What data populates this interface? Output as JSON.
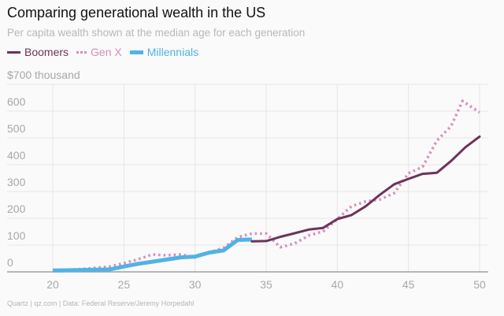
{
  "title": "Comparing generational wealth in the US",
  "subtitle": "Per capita wealth shown at the median age for each generation",
  "footer": "Quartz | qz.com | Data: Federal Reserve/Jeremy Horpedahl",
  "chart_data": {
    "type": "line",
    "title": "Comparing generational wealth in the US",
    "subtitle": "Per capita wealth shown at the median age for each generation",
    "ylabel_top": "$700 thousand",
    "xlim": [
      20,
      50
    ],
    "ylim": [
      0,
      700
    ],
    "x_ticks": [
      "20",
      "25",
      "30",
      "35",
      "40",
      "45",
      "50"
    ],
    "y_ticks": [
      "0",
      "100",
      "200",
      "300",
      "400",
      "500",
      "600",
      "$700 thousand"
    ],
    "y_tick_values": [
      0,
      100,
      200,
      300,
      400,
      500,
      600,
      700
    ],
    "x_tick_values": [
      20,
      25,
      30,
      35,
      40,
      45,
      50
    ],
    "grid": true,
    "legend_position": "top-left",
    "series": [
      {
        "name": "Boomers",
        "color": "#6d3359",
        "style": "solid",
        "x": [
          34,
          35,
          36,
          37,
          38,
          39,
          40,
          41,
          42,
          43,
          44,
          45,
          46,
          47,
          48,
          49,
          50
        ],
        "y": [
          114,
          115,
          131,
          144,
          158,
          164,
          197,
          212,
          245,
          288,
          327,
          347,
          366,
          370,
          414,
          465,
          505
        ]
      },
      {
        "name": "Gen X",
        "color": "#d68cbe",
        "style": "dotted",
        "x": [
          20,
          21,
          22,
          23,
          24,
          25,
          26,
          27,
          28,
          29,
          30,
          31,
          32,
          33,
          34,
          35,
          36,
          37,
          38,
          39,
          40,
          41,
          42,
          43,
          44,
          45,
          46,
          47,
          48,
          48.8,
          50
        ],
        "y": [
          7,
          8,
          10,
          15,
          20,
          32,
          47,
          65,
          62,
          65,
          54,
          72,
          89,
          129,
          143,
          143,
          92,
          106,
          136,
          151,
          197,
          245,
          263,
          270,
          294,
          368,
          392,
          490,
          544,
          638,
          595
        ]
      },
      {
        "name": "Millennials",
        "color": "#51b2e5",
        "style": "thick",
        "x": [
          20,
          21,
          22,
          23,
          24,
          25,
          26,
          27,
          28,
          29,
          30,
          31,
          32,
          33,
          34
        ],
        "y": [
          5,
          6,
          7,
          8,
          9,
          20,
          30,
          38,
          46,
          54,
          57,
          72,
          80,
          119,
          121
        ]
      }
    ]
  }
}
